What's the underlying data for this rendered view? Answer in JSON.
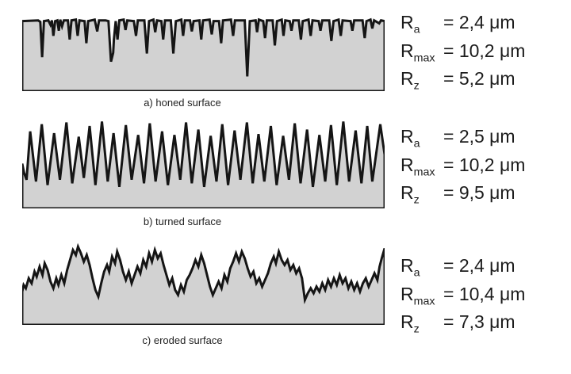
{
  "colors": {
    "surface_fill": "#d2d2d2",
    "outline": "#151515",
    "text": "#1c1c1c"
  },
  "panels": [
    {
      "id": "honed",
      "caption": "a) honed surface",
      "params": [
        {
          "base": "R",
          "sub": "a",
          "value": "= 2,4 μm"
        },
        {
          "base": "R",
          "sub": "max",
          "value": "= 10,2 μm"
        },
        {
          "base": "R",
          "sub": "z",
          "value": "= 5,2 μm"
        }
      ],
      "profile_points": [
        [
          0,
          5
        ],
        [
          44,
          4
        ],
        [
          50,
          6
        ],
        [
          55,
          54
        ],
        [
          60,
          5
        ],
        [
          72,
          4
        ],
        [
          78,
          10
        ],
        [
          82,
          4
        ],
        [
          86,
          25
        ],
        [
          91,
          5
        ],
        [
          97,
          4
        ],
        [
          101,
          18
        ],
        [
          105,
          3
        ],
        [
          110,
          12
        ],
        [
          115,
          4
        ],
        [
          126,
          4
        ],
        [
          131,
          30
        ],
        [
          136,
          4
        ],
        [
          148,
          3
        ],
        [
          153,
          25
        ],
        [
          158,
          4
        ],
        [
          172,
          5
        ],
        [
          177,
          35
        ],
        [
          182,
          5
        ],
        [
          200,
          3
        ],
        [
          207,
          19
        ],
        [
          212,
          4
        ],
        [
          230,
          4
        ],
        [
          238,
          5
        ],
        [
          245,
          60
        ],
        [
          251,
          48
        ],
        [
          253,
          30
        ],
        [
          258,
          5
        ],
        [
          263,
          30
        ],
        [
          268,
          4
        ],
        [
          280,
          3
        ],
        [
          285,
          17
        ],
        [
          290,
          4
        ],
        [
          308,
          5
        ],
        [
          314,
          25
        ],
        [
          319,
          4
        ],
        [
          337,
          4
        ],
        [
          344,
          49
        ],
        [
          350,
          5
        ],
        [
          362,
          3
        ],
        [
          367,
          20
        ],
        [
          372,
          4
        ],
        [
          384,
          5
        ],
        [
          389,
          30
        ],
        [
          394,
          4
        ],
        [
          410,
          4
        ],
        [
          417,
          49
        ],
        [
          424,
          5
        ],
        [
          439,
          3
        ],
        [
          444,
          25
        ],
        [
          449,
          4
        ],
        [
          463,
          4
        ],
        [
          468,
          19
        ],
        [
          473,
          5
        ],
        [
          489,
          4
        ],
        [
          494,
          30
        ],
        [
          499,
          4
        ],
        [
          517,
          3
        ],
        [
          523,
          23
        ],
        [
          528,
          5
        ],
        [
          543,
          5
        ],
        [
          549,
          35
        ],
        [
          554,
          4
        ],
        [
          576,
          3
        ],
        [
          582,
          25
        ],
        [
          587,
          4
        ],
        [
          614,
          4
        ],
        [
          621,
          80
        ],
        [
          628,
          5
        ],
        [
          644,
          4
        ],
        [
          648,
          20
        ],
        [
          653,
          3
        ],
        [
          665,
          5
        ],
        [
          670,
          28
        ],
        [
          675,
          4
        ],
        [
          691,
          4
        ],
        [
          697,
          38
        ],
        [
          703,
          5
        ],
        [
          716,
          3
        ],
        [
          721,
          25
        ],
        [
          726,
          4
        ],
        [
          738,
          5
        ],
        [
          743,
          18
        ],
        [
          748,
          4
        ],
        [
          763,
          4
        ],
        [
          769,
          30
        ],
        [
          774,
          5
        ],
        [
          790,
          3
        ],
        [
          796,
          25
        ],
        [
          801,
          4
        ],
        [
          818,
          5
        ],
        [
          823,
          18
        ],
        [
          828,
          4
        ],
        [
          847,
          4
        ],
        [
          853,
          32
        ],
        [
          859,
          5
        ],
        [
          873,
          3
        ],
        [
          879,
          25
        ],
        [
          884,
          4
        ],
        [
          906,
          5
        ],
        [
          911,
          18
        ],
        [
          916,
          4
        ],
        [
          939,
          4
        ],
        [
          945,
          28
        ],
        [
          950,
          5
        ],
        [
          961,
          3
        ],
        [
          966,
          15
        ],
        [
          971,
          4
        ],
        [
          985,
          8
        ],
        [
          990,
          4
        ],
        [
          1000,
          5
        ]
      ]
    },
    {
      "id": "turned",
      "caption": "b) turned surface",
      "params": [
        {
          "base": "R",
          "sub": "a",
          "value": "= 2,5 μm"
        },
        {
          "base": "R",
          "sub": "max",
          "value": "= 10,2 μm"
        },
        {
          "base": "R",
          "sub": "z",
          "value": "= 9,5 μm"
        }
      ],
      "profile_points": [
        [
          0,
          50
        ],
        [
          5,
          60
        ],
        [
          12,
          68
        ],
        [
          22,
          14
        ],
        [
          38,
          70
        ],
        [
          54,
          6
        ],
        [
          70,
          74
        ],
        [
          88,
          16
        ],
        [
          104,
          68
        ],
        [
          122,
          4
        ],
        [
          138,
          72
        ],
        [
          156,
          20
        ],
        [
          170,
          66
        ],
        [
          186,
          8
        ],
        [
          202,
          74
        ],
        [
          220,
          3
        ],
        [
          236,
          70
        ],
        [
          252,
          16
        ],
        [
          268,
          76
        ],
        [
          286,
          7
        ],
        [
          302,
          68
        ],
        [
          320,
          18
        ],
        [
          336,
          72
        ],
        [
          352,
          5
        ],
        [
          368,
          70
        ],
        [
          386,
          14
        ],
        [
          402,
          74
        ],
        [
          420,
          18
        ],
        [
          436,
          68
        ],
        [
          452,
          4
        ],
        [
          468,
          72
        ],
        [
          486,
          12
        ],
        [
          502,
          76
        ],
        [
          520,
          19
        ],
        [
          536,
          70
        ],
        [
          552,
          6
        ],
        [
          568,
          74
        ],
        [
          586,
          13
        ],
        [
          602,
          68
        ],
        [
          620,
          4
        ],
        [
          636,
          72
        ],
        [
          652,
          17
        ],
        [
          668,
          70
        ],
        [
          686,
          8
        ],
        [
          702,
          74
        ],
        [
          720,
          19
        ],
        [
          736,
          68
        ],
        [
          752,
          5
        ],
        [
          768,
          72
        ],
        [
          786,
          12
        ],
        [
          802,
          76
        ],
        [
          820,
          18
        ],
        [
          836,
          70
        ],
        [
          852,
          7
        ],
        [
          868,
          74
        ],
        [
          886,
          3
        ],
        [
          902,
          70
        ],
        [
          920,
          13
        ],
        [
          936,
          72
        ],
        [
          952,
          8
        ],
        [
          966,
          70
        ],
        [
          988,
          6
        ],
        [
          1000,
          40
        ]
      ]
    },
    {
      "id": "eroded",
      "caption": "c) eroded surface",
      "params": [
        {
          "base": "R",
          "sub": "a",
          "value": "= 2,4 μm"
        },
        {
          "base": "R",
          "sub": "max",
          "value": "= 10,4 μm"
        },
        {
          "base": "R",
          "sub": "z",
          "value": "= 7,3 μm"
        }
      ],
      "profile_points": [
        [
          0,
          60
        ],
        [
          4,
          52
        ],
        [
          10,
          56
        ],
        [
          18,
          44
        ],
        [
          26,
          50
        ],
        [
          34,
          36
        ],
        [
          40,
          42
        ],
        [
          48,
          30
        ],
        [
          56,
          40
        ],
        [
          62,
          26
        ],
        [
          70,
          34
        ],
        [
          78,
          48
        ],
        [
          86,
          56
        ],
        [
          94,
          44
        ],
        [
          100,
          52
        ],
        [
          108,
          40
        ],
        [
          116,
          50
        ],
        [
          124,
          34
        ],
        [
          132,
          22
        ],
        [
          140,
          10
        ],
        [
          148,
          16
        ],
        [
          154,
          6
        ],
        [
          162,
          14
        ],
        [
          170,
          24
        ],
        [
          178,
          16
        ],
        [
          186,
          28
        ],
        [
          194,
          44
        ],
        [
          202,
          58
        ],
        [
          210,
          66
        ],
        [
          218,
          50
        ],
        [
          226,
          36
        ],
        [
          234,
          28
        ],
        [
          240,
          36
        ],
        [
          248,
          18
        ],
        [
          256,
          26
        ],
        [
          262,
          12
        ],
        [
          270,
          22
        ],
        [
          278,
          36
        ],
        [
          286,
          46
        ],
        [
          294,
          36
        ],
        [
          302,
          50
        ],
        [
          310,
          40
        ],
        [
          318,
          30
        ],
        [
          326,
          38
        ],
        [
          334,
          22
        ],
        [
          342,
          30
        ],
        [
          350,
          14
        ],
        [
          358,
          24
        ],
        [
          366,
          10
        ],
        [
          374,
          20
        ],
        [
          382,
          14
        ],
        [
          390,
          28
        ],
        [
          398,
          40
        ],
        [
          406,
          52
        ],
        [
          414,
          44
        ],
        [
          422,
          58
        ],
        [
          430,
          64
        ],
        [
          438,
          52
        ],
        [
          446,
          60
        ],
        [
          454,
          46
        ],
        [
          462,
          40
        ],
        [
          470,
          32
        ],
        [
          478,
          22
        ],
        [
          486,
          30
        ],
        [
          494,
          16
        ],
        [
          502,
          26
        ],
        [
          510,
          40
        ],
        [
          518,
          54
        ],
        [
          526,
          64
        ],
        [
          534,
          56
        ],
        [
          542,
          48
        ],
        [
          550,
          56
        ],
        [
          558,
          40
        ],
        [
          566,
          48
        ],
        [
          574,
          32
        ],
        [
          582,
          24
        ],
        [
          590,
          14
        ],
        [
          598,
          24
        ],
        [
          606,
          12
        ],
        [
          614,
          20
        ],
        [
          622,
          32
        ],
        [
          630,
          42
        ],
        [
          638,
          36
        ],
        [
          646,
          50
        ],
        [
          654,
          44
        ],
        [
          662,
          54
        ],
        [
          670,
          46
        ],
        [
          678,
          38
        ],
        [
          686,
          26
        ],
        [
          694,
          18
        ],
        [
          700,
          26
        ],
        [
          708,
          12
        ],
        [
          716,
          22
        ],
        [
          724,
          28
        ],
        [
          732,
          22
        ],
        [
          740,
          34
        ],
        [
          748,
          28
        ],
        [
          756,
          38
        ],
        [
          764,
          32
        ],
        [
          772,
          44
        ],
        [
          780,
          70
        ],
        [
          788,
          62
        ],
        [
          796,
          56
        ],
        [
          804,
          62
        ],
        [
          812,
          54
        ],
        [
          820,
          60
        ],
        [
          828,
          50
        ],
        [
          836,
          58
        ],
        [
          844,
          46
        ],
        [
          852,
          54
        ],
        [
          860,
          44
        ],
        [
          868,
          52
        ],
        [
          876,
          40
        ],
        [
          884,
          50
        ],
        [
          892,
          44
        ],
        [
          900,
          56
        ],
        [
          908,
          48
        ],
        [
          916,
          58
        ],
        [
          924,
          50
        ],
        [
          932,
          60
        ],
        [
          940,
          50
        ],
        [
          948,
          44
        ],
        [
          956,
          54
        ],
        [
          964,
          46
        ],
        [
          972,
          38
        ],
        [
          980,
          46
        ],
        [
          986,
          30
        ],
        [
          992,
          20
        ],
        [
          1000,
          8
        ]
      ]
    }
  ]
}
